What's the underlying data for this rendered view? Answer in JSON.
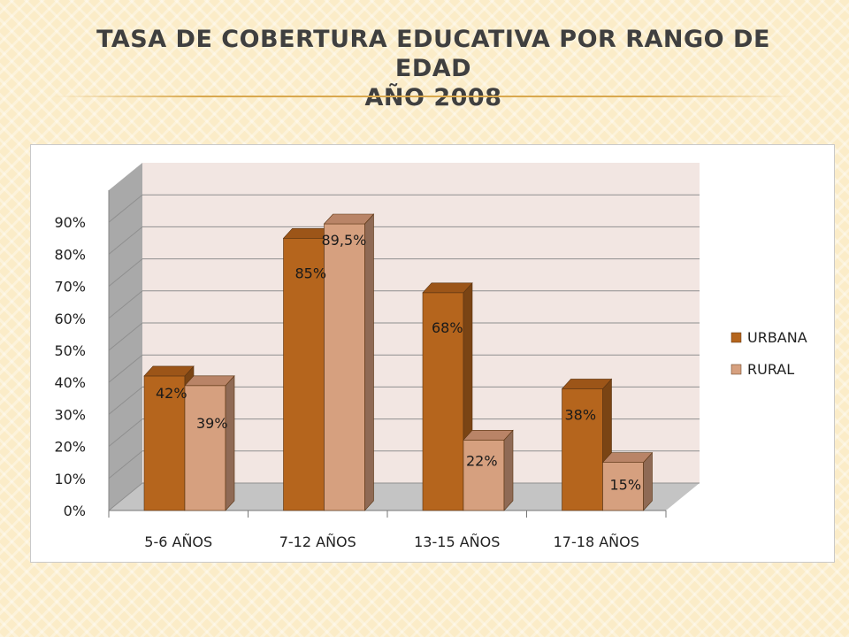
{
  "slide": {
    "title_line1": "TASA DE COBERTURA EDUCATIVA POR RANGO DE EDAD",
    "title_line2": "AÑO 2008"
  },
  "chart_data": {
    "type": "bar",
    "style": "3d-clustered-column",
    "categories": [
      "5-6 AÑOS",
      "7-12 AÑOS",
      "13-15 AÑOS",
      "17-18 AÑOS"
    ],
    "series": [
      {
        "name": "URBANA",
        "values": [
          42,
          85,
          68,
          38
        ],
        "labels": [
          "42%",
          "85%",
          "68%",
          "38%"
        ],
        "color": "#b5651d",
        "side_color": "#7a4414",
        "top_color": "#9c5518"
      },
      {
        "name": "RURAL",
        "values": [
          39,
          89.5,
          22,
          15
        ],
        "labels": [
          "39%",
          "89,5%",
          "22%",
          "15%"
        ],
        "color": "#d6a07f",
        "side_color": "#8f6a55",
        "top_color": "#b98467"
      }
    ],
    "y_ticks": [
      0,
      10,
      20,
      30,
      40,
      50,
      60,
      70,
      80,
      90
    ],
    "y_tick_labels": [
      "0%",
      "10%",
      "20%",
      "30%",
      "40%",
      "50%",
      "60%",
      "70%",
      "80%",
      "90%"
    ],
    "ylim": [
      0,
      100
    ],
    "title": "",
    "xlabel": "",
    "ylabel": "",
    "grid": true,
    "legend_position": "right",
    "colors": {
      "back_wall": "#f2e6e2",
      "side_wall": "#a9a9a9",
      "floor": "#c4c4c4"
    }
  }
}
